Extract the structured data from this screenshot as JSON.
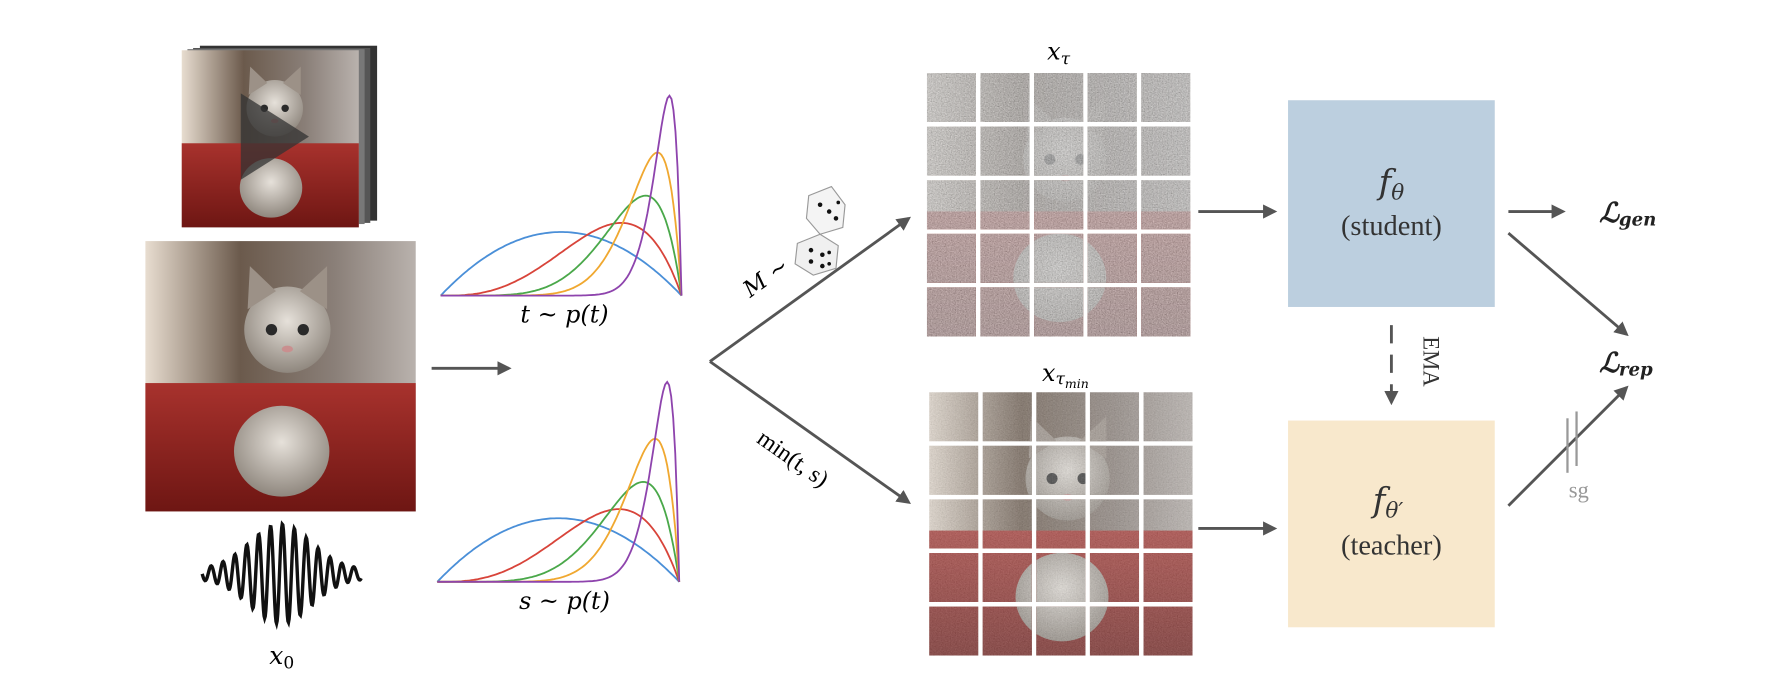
{
  "x0": {
    "base": "x",
    "sub": "0"
  },
  "distributions": [
    {
      "label": "t ~ p(t)"
    },
    {
      "label": "s ~ p(t)"
    }
  ],
  "branches": [
    {
      "label": "M ~"
    },
    {
      "label": "min(t, s)"
    }
  ],
  "noisy": [
    {
      "base": "x",
      "sub": "τ"
    },
    {
      "base": "x",
      "sub": "τ",
      "subsub": "min"
    }
  ],
  "models": [
    {
      "symbol": "f",
      "sub": "θ",
      "role": "(student)"
    },
    {
      "symbol": "f",
      "sub": "θ′",
      "role": "(teacher)"
    }
  ],
  "ema": "EMA",
  "losses": [
    {
      "symbol": "ℒ",
      "sub": "gen"
    },
    {
      "symbol": "ℒ",
      "sub": "rep"
    }
  ],
  "stop_grad": "sg"
}
